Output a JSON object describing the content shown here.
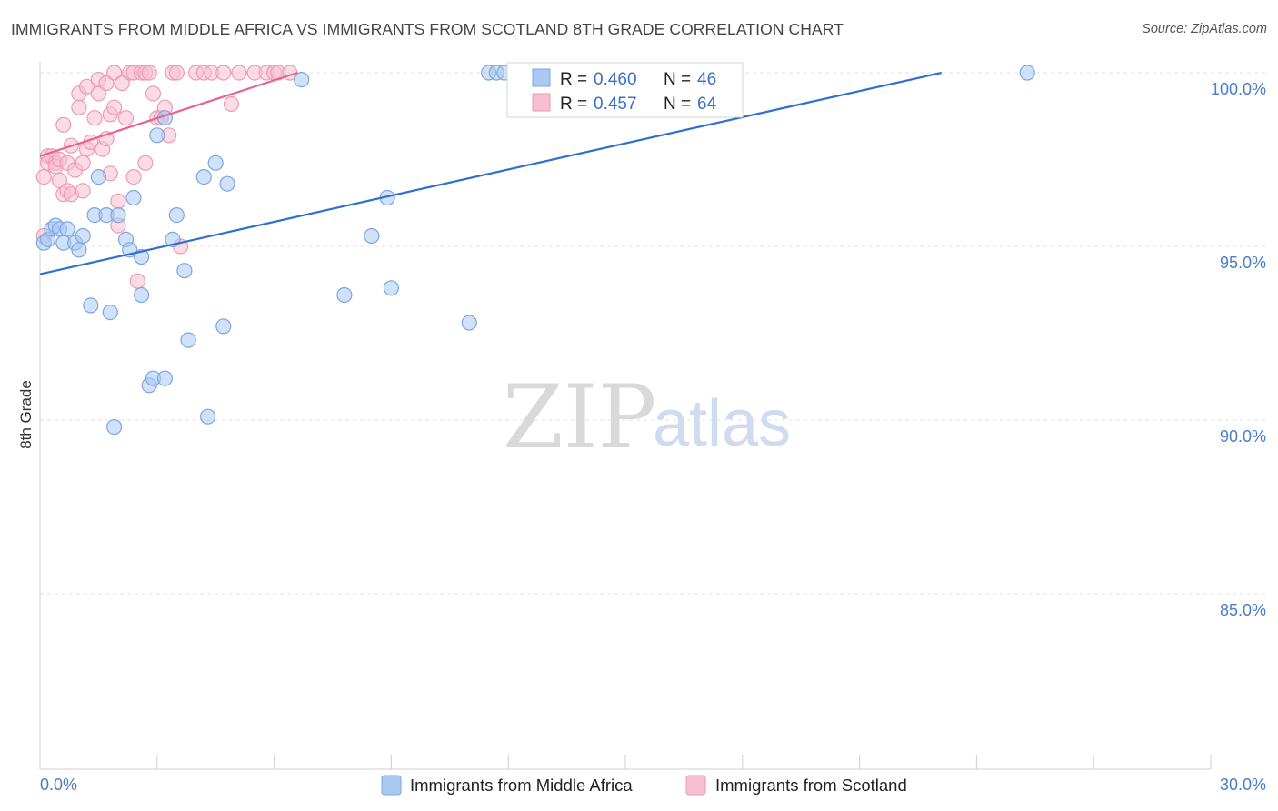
{
  "title": "IMMIGRANTS FROM MIDDLE AFRICA VS IMMIGRANTS FROM SCOTLAND 8TH GRADE CORRELATION CHART",
  "source": "Source: ZipAtlas.com",
  "watermark": {
    "part1": "ZIP",
    "part2": "atlas"
  },
  "colors": {
    "blue_fill": "#a9c8f2",
    "blue_stroke": "#7aa7e3",
    "blue_line": "#2f6fcf",
    "pink_fill": "#f7bfd0",
    "pink_stroke": "#ee9ab4",
    "pink_line": "#e4648e",
    "tick_label": "#4a7cc9",
    "grid": "#e3e3e3"
  },
  "stats": [
    {
      "series": "Immigrants from Middle Africa",
      "r_label": "R =",
      "r": "0.460",
      "n_label": "N =",
      "n": "46"
    },
    {
      "series": "Immigrants from Scotland",
      "r_label": "R =",
      "r": "0.457",
      "n_label": "N =",
      "n": "64"
    }
  ],
  "chart_data": {
    "type": "scatter",
    "title": "IMMIGRANTS FROM MIDDLE AFRICA VS IMMIGRANTS FROM SCOTLAND 8TH GRADE CORRELATION CHART",
    "xlabel": "",
    "ylabel": "8th Grade",
    "xlim": [
      0,
      30
    ],
    "ylim": [
      80,
      100.5
    ],
    "x_tick_labels": [
      "0.0%",
      "30.0%"
    ],
    "y_ticks": [
      {
        "value": 100,
        "label": "100.0%"
      },
      {
        "value": 95,
        "label": "95.0%"
      },
      {
        "value": 90,
        "label": "90.0%"
      },
      {
        "value": 85,
        "label": "85.0%"
      }
    ],
    "legend_placement": "bottom-center",
    "series": [
      {
        "name": "Immigrants from Middle Africa",
        "color": "#a9c8f2",
        "trend": {
          "x1": 0,
          "y1": 94.2,
          "x2": 23.1,
          "y2": 100.0
        },
        "points": [
          [
            0.1,
            95.1
          ],
          [
            0.2,
            95.2
          ],
          [
            0.3,
            95.5
          ],
          [
            0.4,
            95.6
          ],
          [
            0.5,
            95.5
          ],
          [
            0.6,
            95.1
          ],
          [
            0.7,
            95.5
          ],
          [
            0.9,
            95.1
          ],
          [
            1.0,
            94.9
          ],
          [
            1.1,
            95.3
          ],
          [
            1.3,
            93.3
          ],
          [
            1.4,
            95.9
          ],
          [
            1.5,
            97.0
          ],
          [
            1.7,
            95.9
          ],
          [
            1.8,
            93.1
          ],
          [
            1.9,
            89.8
          ],
          [
            2.0,
            95.9
          ],
          [
            2.2,
            95.2
          ],
          [
            2.3,
            94.9
          ],
          [
            2.4,
            96.4
          ],
          [
            2.6,
            94.7
          ],
          [
            2.6,
            93.6
          ],
          [
            2.8,
            91.0
          ],
          [
            2.9,
            91.2
          ],
          [
            3.0,
            98.2
          ],
          [
            3.2,
            91.2
          ],
          [
            3.2,
            98.7
          ],
          [
            3.4,
            95.2
          ],
          [
            3.5,
            95.9
          ],
          [
            3.7,
            94.3
          ],
          [
            3.8,
            92.3
          ],
          [
            4.2,
            97.0
          ],
          [
            4.3,
            90.1
          ],
          [
            4.5,
            97.4
          ],
          [
            4.7,
            92.7
          ],
          [
            4.8,
            96.8
          ],
          [
            6.7,
            99.8
          ],
          [
            7.8,
            93.6
          ],
          [
            8.5,
            95.3
          ],
          [
            8.9,
            96.4
          ],
          [
            9.0,
            93.8
          ],
          [
            11.0,
            92.8
          ],
          [
            11.5,
            100.0
          ],
          [
            11.7,
            100.0
          ],
          [
            11.9,
            100.0
          ],
          [
            25.3,
            100.0
          ]
        ]
      },
      {
        "name": "Immigrants from Scotland",
        "color": "#f7bfd0",
        "trend": {
          "x1": 0,
          "y1": 97.6,
          "x2": 6.6,
          "y2": 100.0
        },
        "points": [
          [
            0.1,
            97.0
          ],
          [
            0.1,
            95.3
          ],
          [
            0.2,
            97.6
          ],
          [
            0.2,
            97.4
          ],
          [
            0.3,
            97.6
          ],
          [
            0.4,
            97.4
          ],
          [
            0.4,
            97.3
          ],
          [
            0.5,
            97.5
          ],
          [
            0.5,
            96.9
          ],
          [
            0.6,
            98.5
          ],
          [
            0.6,
            96.5
          ],
          [
            0.7,
            97.4
          ],
          [
            0.7,
            96.6
          ],
          [
            0.8,
            97.9
          ],
          [
            0.8,
            96.5
          ],
          [
            0.9,
            97.2
          ],
          [
            1.0,
            99.0
          ],
          [
            1.0,
            99.4
          ],
          [
            1.1,
            96.6
          ],
          [
            1.1,
            97.4
          ],
          [
            1.2,
            99.6
          ],
          [
            1.2,
            97.8
          ],
          [
            1.3,
            98.0
          ],
          [
            1.4,
            98.7
          ],
          [
            1.5,
            99.4
          ],
          [
            1.5,
            99.8
          ],
          [
            1.6,
            97.8
          ],
          [
            1.7,
            99.7
          ],
          [
            1.7,
            98.1
          ],
          [
            1.8,
            97.1
          ],
          [
            1.8,
            98.8
          ],
          [
            1.9,
            100.0
          ],
          [
            1.9,
            99.0
          ],
          [
            2.0,
            95.6
          ],
          [
            2.0,
            96.3
          ],
          [
            2.1,
            99.7
          ],
          [
            2.2,
            98.7
          ],
          [
            2.3,
            100.0
          ],
          [
            2.4,
            100.0
          ],
          [
            2.4,
            97.0
          ],
          [
            2.5,
            94.0
          ],
          [
            2.6,
            100.0
          ],
          [
            2.7,
            100.0
          ],
          [
            2.7,
            97.4
          ],
          [
            2.8,
            100.0
          ],
          [
            2.9,
            99.4
          ],
          [
            3.0,
            98.7
          ],
          [
            3.1,
            98.7
          ],
          [
            3.2,
            99.0
          ],
          [
            3.3,
            98.2
          ],
          [
            3.4,
            100.0
          ],
          [
            3.5,
            100.0
          ],
          [
            3.6,
            95.0
          ],
          [
            4.0,
            100.0
          ],
          [
            4.2,
            100.0
          ],
          [
            4.4,
            100.0
          ],
          [
            4.7,
            100.0
          ],
          [
            4.9,
            99.1
          ],
          [
            5.1,
            100.0
          ],
          [
            5.5,
            100.0
          ],
          [
            5.8,
            100.0
          ],
          [
            6.0,
            100.0
          ],
          [
            6.1,
            100.0
          ],
          [
            6.4,
            100.0
          ]
        ]
      }
    ]
  },
  "axis": {
    "ylabel": "8th Grade",
    "x_min_label": "0.0%",
    "x_max_label": "30.0%"
  },
  "legend": [
    {
      "label": "Immigrants from Middle Africa"
    },
    {
      "label": "Immigrants from Scotland"
    }
  ]
}
